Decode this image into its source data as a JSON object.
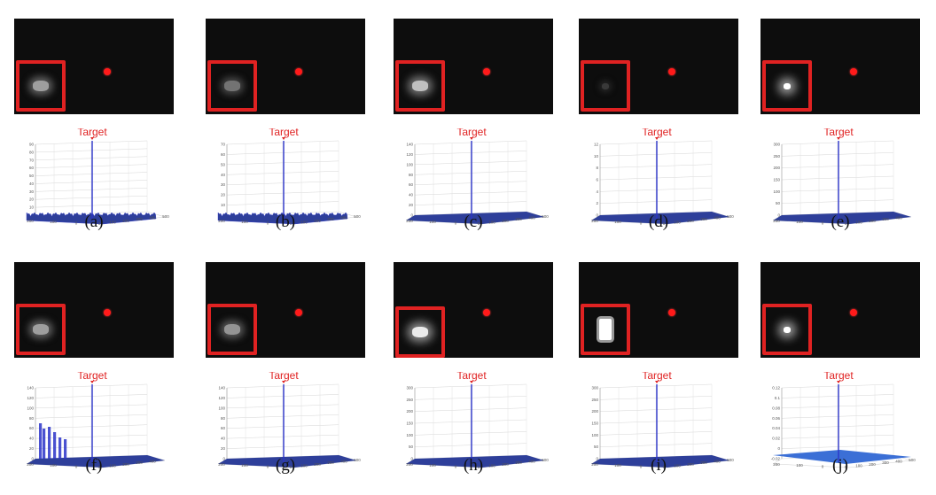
{
  "colors": {
    "box": "#e02222",
    "dot": "#ff1a1a",
    "spike": "#2b34c9",
    "floor": "#2e3f9a",
    "frame": "#0d0d0d"
  },
  "panels": [
    {
      "caption": "(a)",
      "target_label": "Target",
      "y_ticks": [
        "0",
        "10",
        "20",
        "30",
        "40",
        "50",
        "60",
        "70",
        "80",
        "90"
      ],
      "x_ticks_left": [
        "200",
        "100",
        "0"
      ],
      "x_ticks_right": [
        "0",
        "100",
        "200",
        "300",
        "400",
        "500"
      ],
      "floor": "noise",
      "blob": {
        "size": "medium",
        "intensity": 0.55
      }
    },
    {
      "caption": "(b)",
      "target_label": "Target",
      "y_ticks": [
        "0",
        "10",
        "20",
        "30",
        "40",
        "50",
        "60",
        "70"
      ],
      "x_ticks_left": [
        "200",
        "100",
        "0"
      ],
      "x_ticks_right": [
        "0",
        "100",
        "200",
        "300",
        "400",
        "500"
      ],
      "floor": "noise",
      "blob": {
        "size": "medium",
        "intensity": 0.35
      }
    },
    {
      "caption": "(c)",
      "target_label": "Target",
      "y_ticks": [
        "0",
        "20",
        "40",
        "60",
        "80",
        "100",
        "120",
        "140"
      ],
      "x_ticks_left": [
        "200",
        "100",
        "0"
      ],
      "x_ticks_right": [
        "0",
        "100",
        "200",
        "300",
        "400",
        "500"
      ],
      "floor": "flat",
      "blob": {
        "size": "medium",
        "intensity": 0.7
      }
    },
    {
      "caption": "(d)",
      "target_label": "Target",
      "y_ticks": [
        "0",
        "2",
        "4",
        "6",
        "8",
        "10",
        "12"
      ],
      "x_ticks_left": [
        "200",
        "100",
        "0"
      ],
      "x_ticks_right": [
        "0",
        "100",
        "200",
        "300",
        "400",
        "500"
      ],
      "floor": "flat",
      "blob": {
        "size": "small",
        "intensity": 0.08
      }
    },
    {
      "caption": "(e)",
      "target_label": "Target",
      "y_ticks": [
        "0",
        "50",
        "100",
        "150",
        "200",
        "250",
        "300"
      ],
      "x_ticks_left": [
        "200",
        "100",
        "0"
      ],
      "x_ticks_right": [
        "0",
        "100",
        "200",
        "300",
        "400"
      ],
      "floor": "flat",
      "blob": {
        "size": "small",
        "intensity": 1.0
      }
    },
    {
      "caption": "(f)",
      "target_label": "Target",
      "y_ticks": [
        "0",
        "20",
        "40",
        "60",
        "80",
        "100",
        "120",
        "140"
      ],
      "x_ticks_left": [
        "200",
        "100",
        "0"
      ],
      "x_ticks_right": [
        "0",
        "100",
        "200",
        "300",
        "400"
      ],
      "floor": "bumps",
      "blob": {
        "size": "medium",
        "intensity": 0.55
      }
    },
    {
      "caption": "(g)",
      "target_label": "Target",
      "y_ticks": [
        "0",
        "20",
        "40",
        "60",
        "80",
        "100",
        "120",
        "140"
      ],
      "x_ticks_left": [
        "200",
        "100",
        "0"
      ],
      "x_ticks_right": [
        "0",
        "100",
        "200",
        "300",
        "400",
        "500"
      ],
      "floor": "flat",
      "blob": {
        "size": "medium",
        "intensity": 0.5
      }
    },
    {
      "caption": "(h)",
      "target_label": "Target",
      "y_ticks": [
        "0",
        "50",
        "100",
        "150",
        "200",
        "250",
        "300"
      ],
      "x_ticks_left": [
        "200",
        "100",
        "0"
      ],
      "x_ticks_right": [
        "0",
        "100",
        "200",
        "300",
        "400",
        "500"
      ],
      "floor": "flat",
      "blob": {
        "size": "medium",
        "intensity": 0.9
      }
    },
    {
      "caption": "(i)",
      "target_label": "Target",
      "y_ticks": [
        "0",
        "50",
        "100",
        "150",
        "200",
        "250",
        "300"
      ],
      "x_ticks_left": [
        "200",
        "100",
        "0"
      ],
      "x_ticks_right": [
        "0",
        "100",
        "200",
        "300",
        "400",
        "500"
      ],
      "floor": "flat",
      "blob": {
        "size": "large",
        "intensity": 1.0
      }
    },
    {
      "caption": "(j)",
      "target_label": "Target",
      "y_ticks": [
        "-0.02",
        "0",
        "0.02",
        "0.04",
        "0.06",
        "0.08",
        "0.1",
        "0.12"
      ],
      "x_ticks_left": [
        "200",
        "100",
        "0"
      ],
      "x_ticks_right": [
        "0",
        "100",
        "200",
        "300",
        "400",
        "500"
      ],
      "floor": "plane",
      "blob": {
        "size": "small",
        "intensity": 1.0
      }
    }
  ]
}
